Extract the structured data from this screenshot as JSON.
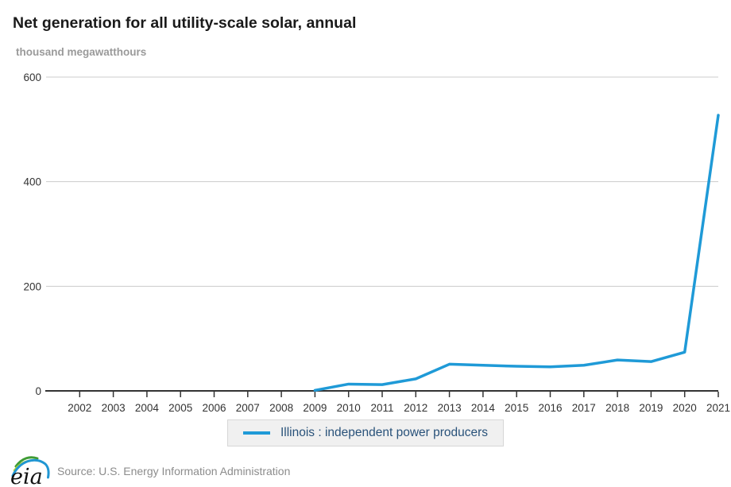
{
  "title": "Net generation for all utility-scale solar, annual",
  "units_label": "thousand megawatthours",
  "legend": {
    "series_label": "Illinois : independent power producers"
  },
  "footer": {
    "logo_text": "eia",
    "source_text": "Source: U.S. Energy Information Administration"
  },
  "colors": {
    "series_line": "#1f9ad7",
    "grid": "#cccccc",
    "axis": "#333333",
    "legend_text": "#29527a"
  },
  "chart_data": {
    "type": "line",
    "title": "Net generation for all utility-scale solar, annual",
    "xlabel": "",
    "ylabel": "thousand megawatthours",
    "x_domain": [
      2001,
      2021
    ],
    "ylim": [
      0,
      600
    ],
    "yticks": [
      0,
      200,
      400,
      600
    ],
    "xticks": [
      2002,
      2003,
      2004,
      2005,
      2006,
      2007,
      2008,
      2009,
      2010,
      2011,
      2012,
      2013,
      2014,
      2015,
      2016,
      2017,
      2018,
      2019,
      2020,
      2021
    ],
    "grid": "horizontal",
    "legend_position": "bottom",
    "series": [
      {
        "name": "Illinois : independent power producers",
        "color": "#1f9ad7",
        "x": [
          2009,
          2010,
          2011,
          2012,
          2013,
          2014,
          2015,
          2016,
          2017,
          2018,
          2019,
          2020,
          2021
        ],
        "values": [
          1,
          13,
          12,
          23,
          51,
          49,
          47,
          46,
          49,
          59,
          56,
          74,
          527
        ]
      }
    ]
  }
}
